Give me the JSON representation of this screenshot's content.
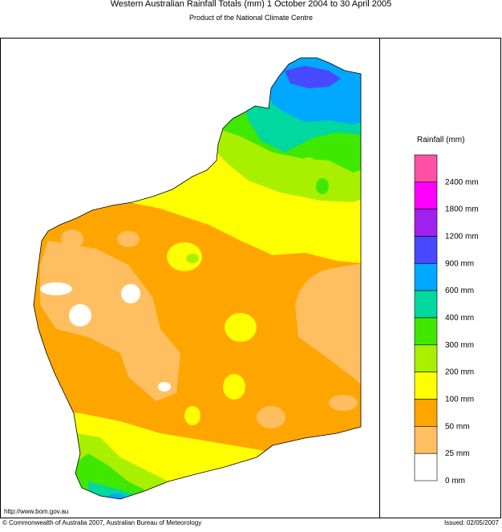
{
  "header": {
    "title": "Western Australian Rainfall Totals (mm) 1 October 2004 to 30 April 2005",
    "subtitle": "Product of the National Climate Centre"
  },
  "legend": {
    "title": "Rainfall (mm)",
    "colors": [
      "#ff50a8",
      "#ff00ff",
      "#a020f0",
      "#4848ff",
      "#00a8ff",
      "#00d8a0",
      "#40e800",
      "#a8f000",
      "#ffff00",
      "#ffa500",
      "#ffbf60",
      "#ffffff"
    ],
    "labels": [
      "2400 mm",
      "1800 mm",
      "1200 mm",
      "900 mm",
      "600 mm",
      "400 mm",
      "300 mm",
      "200 mm",
      "100 mm",
      "50 mm",
      "25 mm",
      "0 mm"
    ]
  },
  "footer": {
    "url": "http://www.bom.gov.au",
    "copyright": "© Commonwealth of Australia 2007, Australian Bureau of Meteorology",
    "issued": "Issued: 02/05/2007"
  }
}
